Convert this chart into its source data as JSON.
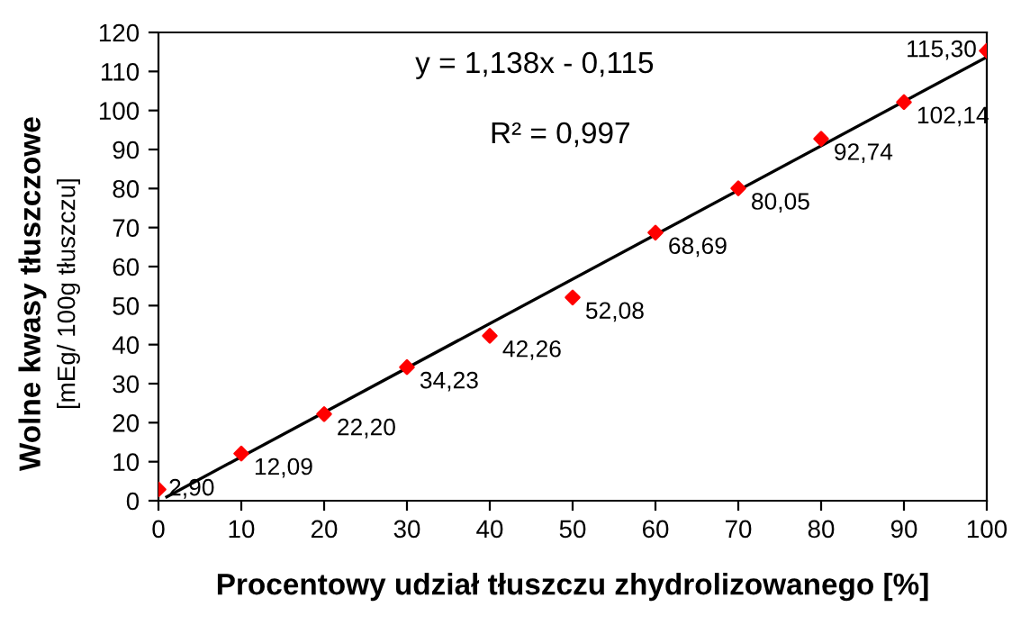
{
  "chart_data": {
    "type": "scatter",
    "xlabel": "Procentowy udział tłuszczu zhydrolizowanego [%]",
    "ylabel": "Wolne kwasy tłuszczowe\n[mEg/ 100g tłuszczu]",
    "annotations": [
      "y = 1,138x - 0,115",
      "R² = 0,997"
    ],
    "xlim": [
      0,
      100
    ],
    "xticks": [
      0,
      10,
      20,
      30,
      40,
      50,
      60,
      70,
      80,
      90,
      100
    ],
    "ylim": [
      0,
      120
    ],
    "yticks": [
      0,
      10,
      20,
      30,
      40,
      50,
      60,
      70,
      80,
      90,
      100,
      110,
      120
    ],
    "grid": false,
    "legend": false,
    "series": [
      {
        "color": "#ff0000",
        "marker": "diamond",
        "x": [
          0,
          10,
          20,
          30,
          40,
          50,
          60,
          70,
          80,
          90,
          100
        ],
        "values": [
          2.9,
          12.09,
          22.2,
          34.23,
          42.26,
          52.08,
          68.69,
          80.05,
          92.74,
          102.14,
          115.3
        ],
        "value_labels": [
          "2,90",
          "12,09",
          "22,20",
          "34,23",
          "42,26",
          "52,08",
          "68,69",
          "80,05",
          "92,74",
          "102,14",
          "115,30"
        ]
      },
      {
        "type": "line",
        "color": "#000000",
        "marker": "none",
        "line_style": "solid",
        "x": [
          1,
          100
        ],
        "values": [
          1.0,
          113.7
        ]
      }
    ]
  }
}
